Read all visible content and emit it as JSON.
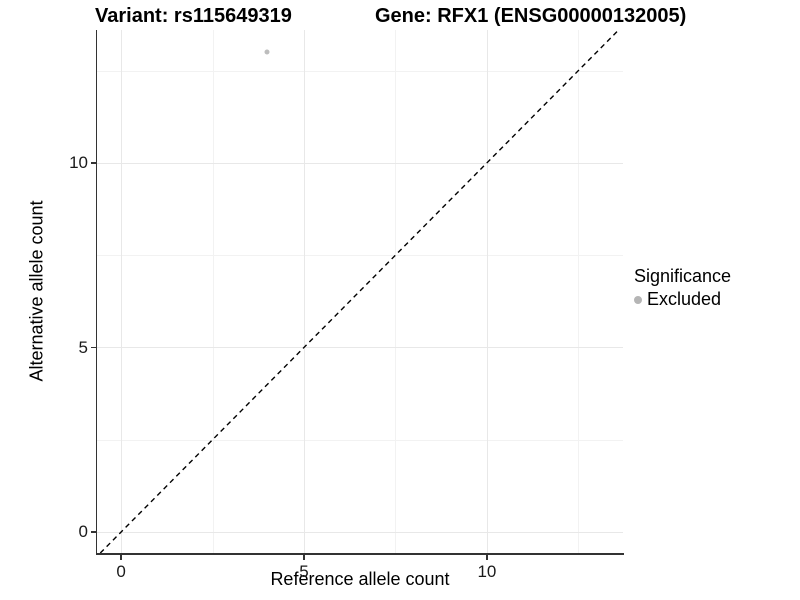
{
  "chart_data": {
    "type": "scatter",
    "title_left": "Variant: rs115649319",
    "title_right": "Gene: RFX1 (ENSG00000132005)",
    "xlabel": "Reference allele count",
    "ylabel": "Alternative allele count",
    "xlim": [
      -0.66,
      13.72
    ],
    "ylim": [
      -0.57,
      13.6
    ],
    "x_ticks": [
      0,
      5,
      10
    ],
    "y_ticks": [
      0,
      5,
      10
    ],
    "x_minor_gridlines": [
      2.5,
      7.5,
      12.5
    ],
    "y_minor_gridlines": [
      2.5,
      7.5,
      12.5
    ],
    "grid": "major and minor gridlines, very light gray on white",
    "identity_line": {
      "equation": "y = x",
      "style": "dashed",
      "color": "#000000"
    },
    "series": [
      {
        "name": "Excluded",
        "marker": "circle",
        "color": "#bdbdbd",
        "points": [
          {
            "x": 4,
            "y": 13
          }
        ]
      }
    ],
    "legend": {
      "title": "Significance",
      "position": "right",
      "entries": [
        {
          "label": "Excluded",
          "marker": "circle",
          "color": "#b5b5b5"
        }
      ]
    },
    "colors": {
      "axis_line": "#333333",
      "tick_mark": "#333333",
      "tick_text": "#1a1a1a",
      "title_text": "#000000",
      "grid_major": "#e8e8e8",
      "grid_minor": "#f2f2f2",
      "background": "#ffffff"
    }
  }
}
